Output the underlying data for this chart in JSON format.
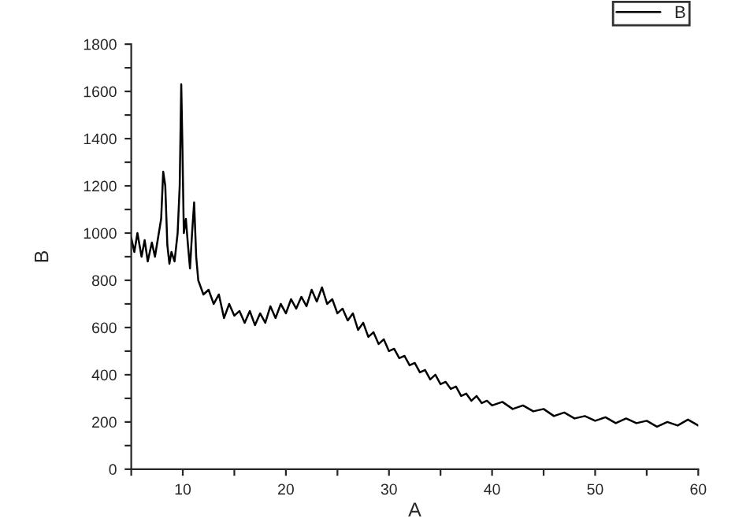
{
  "chart_data": {
    "type": "line",
    "xlabel": "A",
    "ylabel": "B",
    "legend": "top right",
    "grid": false,
    "marker": "none",
    "line_style": "solid",
    "xlim": [
      5,
      60
    ],
    "ylim": [
      0,
      1800
    ],
    "xticks": [
      {
        "value": 5,
        "label": null
      },
      10,
      {
        "value": 15,
        "label": null
      },
      20,
      {
        "value": 25,
        "label": null
      },
      30,
      {
        "value": 35,
        "label": null
      },
      40,
      {
        "value": 45,
        "label": null
      },
      50,
      {
        "value": 55,
        "label": null
      },
      60
    ],
    "yticks": [
      0,
      {
        "value": 100,
        "label": null
      },
      200,
      {
        "value": 300,
        "label": null
      },
      400,
      {
        "value": 500,
        "label": null
      },
      600,
      {
        "value": 700,
        "label": null
      },
      800,
      {
        "value": 900,
        "label": null
      },
      1000,
      {
        "value": 1100,
        "label": null
      },
      1200,
      {
        "value": 1300,
        "label": null
      },
      1400,
      {
        "value": 1500,
        "label": null
      },
      1600,
      {
        "value": 1700,
        "label": null
      },
      1800
    ],
    "series": [
      {
        "name": "B",
        "color": "#000000",
        "x": [
          5,
          5.3,
          5.6,
          6,
          6.3,
          6.6,
          7,
          7.3,
          7.6,
          7.9,
          8.1,
          8.3,
          8.5,
          8.7,
          8.9,
          9.2,
          9.5,
          9.7,
          9.85,
          9.95,
          10.1,
          10.3,
          10.5,
          10.7,
          10.9,
          11.1,
          11.3,
          11.5,
          12,
          12.5,
          13,
          13.5,
          14,
          14.5,
          15,
          15.5,
          16,
          16.5,
          17,
          17.5,
          18,
          18.5,
          19,
          19.5,
          20,
          20.5,
          21,
          21.5,
          22,
          22.5,
          23,
          23.5,
          24,
          24.5,
          25,
          25.5,
          26,
          26.5,
          27,
          27.5,
          28,
          28.5,
          29,
          29.5,
          30,
          30.5,
          31,
          31.5,
          32,
          32.5,
          33,
          33.5,
          34,
          34.5,
          35,
          35.5,
          36,
          36.5,
          37,
          37.5,
          38,
          38.5,
          39,
          39.5,
          40,
          41,
          42,
          43,
          44,
          45,
          46,
          47,
          48,
          49,
          50,
          51,
          52,
          53,
          54,
          55,
          56,
          57,
          58,
          59,
          60
        ],
        "values": [
          980,
          920,
          1000,
          900,
          970,
          880,
          960,
          900,
          980,
          1060,
          1260,
          1200,
          950,
          870,
          920,
          880,
          1000,
          1200,
          1630,
          1400,
          1000,
          1060,
          950,
          850,
          1000,
          1130,
          900,
          800,
          740,
          760,
          700,
          740,
          640,
          700,
          650,
          670,
          620,
          670,
          610,
          660,
          620,
          690,
          640,
          700,
          660,
          720,
          680,
          730,
          690,
          760,
          710,
          770,
          700,
          720,
          660,
          680,
          630,
          660,
          590,
          620,
          560,
          580,
          530,
          550,
          500,
          510,
          470,
          480,
          440,
          450,
          410,
          420,
          380,
          400,
          360,
          370,
          340,
          350,
          310,
          320,
          290,
          310,
          280,
          290,
          270,
          285,
          255,
          270,
          245,
          255,
          225,
          240,
          215,
          225,
          205,
          220,
          195,
          215,
          195,
          205,
          180,
          200,
          185,
          210,
          185
        ]
      }
    ]
  }
}
